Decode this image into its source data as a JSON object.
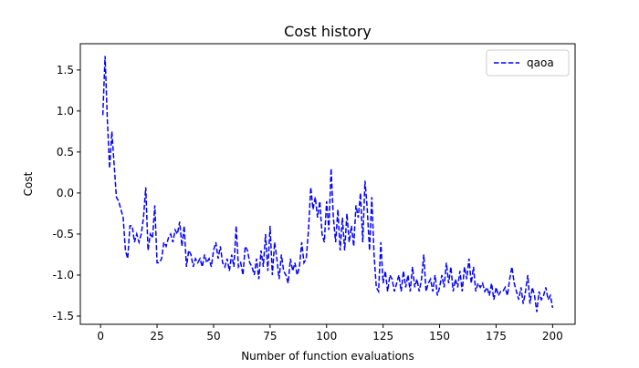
{
  "chart_data": {
    "type": "line",
    "title": "Cost history",
    "xlabel": "Number of function evaluations",
    "ylabel": "Cost",
    "x": [
      1,
      2,
      3,
      4,
      5,
      6,
      7,
      8,
      9,
      10,
      11,
      12,
      13,
      14,
      15,
      16,
      17,
      18,
      19,
      20,
      21,
      22,
      23,
      24,
      25,
      26,
      27,
      28,
      29,
      30,
      31,
      32,
      33,
      34,
      35,
      36,
      37,
      38,
      39,
      40,
      41,
      42,
      43,
      44,
      45,
      46,
      47,
      48,
      49,
      50,
      51,
      52,
      53,
      54,
      55,
      56,
      57,
      58,
      59,
      60,
      61,
      62,
      63,
      64,
      65,
      66,
      67,
      68,
      69,
      70,
      71,
      72,
      73,
      74,
      75,
      76,
      77,
      78,
      79,
      80,
      81,
      82,
      83,
      84,
      85,
      86,
      87,
      88,
      89,
      90,
      91,
      92,
      93,
      94,
      95,
      96,
      97,
      98,
      99,
      100,
      101,
      102,
      103,
      104,
      105,
      106,
      107,
      108,
      109,
      110,
      111,
      112,
      113,
      114,
      115,
      116,
      117,
      118,
      119,
      120,
      121,
      122,
      123,
      124,
      125,
      126,
      127,
      128,
      129,
      130,
      131,
      132,
      133,
      134,
      135,
      136,
      137,
      138,
      139,
      140,
      141,
      142,
      143,
      144,
      145,
      146,
      147,
      148,
      149,
      150,
      151,
      152,
      153,
      154,
      155,
      156,
      157,
      158,
      159,
      160,
      161,
      162,
      163,
      164,
      165,
      166,
      167,
      168,
      169,
      170,
      171,
      172,
      173,
      174,
      175,
      176,
      177,
      178,
      179,
      180,
      181,
      182,
      183,
      184,
      185,
      186,
      187,
      188,
      189,
      190,
      191,
      192,
      193,
      194,
      195,
      196,
      197,
      198,
      199,
      200
    ],
    "series": [
      {
        "name": "qaoa",
        "color": "#0000ff",
        "dash": "dashed",
        "values": [
          0.95,
          1.67,
          0.9,
          0.3,
          0.75,
          0.35,
          -0.05,
          -0.1,
          -0.2,
          -0.3,
          -0.7,
          -0.8,
          -0.4,
          -0.4,
          -0.6,
          -0.5,
          -0.6,
          -0.5,
          -0.3,
          0.07,
          -0.7,
          -0.5,
          -0.55,
          -0.15,
          -0.85,
          -0.85,
          -0.8,
          -0.6,
          -0.65,
          -0.55,
          -0.5,
          -0.6,
          -0.45,
          -0.5,
          -0.35,
          -0.65,
          -0.4,
          -0.9,
          -0.7,
          -0.75,
          -0.9,
          -0.8,
          -0.85,
          -0.8,
          -0.9,
          -0.75,
          -0.85,
          -0.8,
          -0.9,
          -0.7,
          -0.6,
          -0.8,
          -0.65,
          -0.85,
          -0.9,
          -0.8,
          -0.95,
          -0.75,
          -0.9,
          -0.4,
          -0.9,
          -0.85,
          -1.0,
          -0.65,
          -0.7,
          -0.85,
          -0.9,
          -1.0,
          -0.8,
          -1.05,
          -0.7,
          -0.9,
          -0.5,
          -0.95,
          -0.4,
          -1.0,
          -0.6,
          -0.8,
          -1.05,
          -0.75,
          -0.95,
          -1.0,
          -1.1,
          -0.8,
          -0.95,
          -0.85,
          -1.0,
          -0.9,
          -0.6,
          -0.85,
          -0.8,
          -0.45,
          0.07,
          -0.2,
          -0.05,
          -0.3,
          -0.1,
          -0.5,
          -0.6,
          -0.1,
          -0.45,
          0.3,
          -0.3,
          -0.6,
          -0.2,
          -0.7,
          -0.3,
          -0.7,
          -0.25,
          -0.6,
          -0.4,
          -0.65,
          -0.15,
          -0.3,
          0.0,
          -0.6,
          0.15,
          -0.2,
          -0.7,
          -0.05,
          -0.75,
          -1.15,
          -1.2,
          -0.6,
          -1.1,
          -0.95,
          -1.2,
          -1.0,
          -1.05,
          -1.2,
          -1.1,
          -1.0,
          -1.2,
          -0.95,
          -1.15,
          -1.0,
          -1.2,
          -0.9,
          -1.15,
          -1.05,
          -1.2,
          -1.05,
          -0.75,
          -1.2,
          -1.1,
          -1.05,
          -1.2,
          -1.0,
          -1.25,
          -1.15,
          -1.0,
          -1.15,
          -0.85,
          -1.1,
          -0.9,
          -1.2,
          -1.05,
          -1.15,
          -0.95,
          -1.2,
          -0.9,
          -1.05,
          -0.8,
          -1.1,
          -0.9,
          -1.2,
          -1.1,
          -1.15,
          -1.1,
          -1.2,
          -1.15,
          -1.25,
          -1.1,
          -1.3,
          -1.15,
          -1.25,
          -1.2,
          -1.2,
          -1.15,
          -1.25,
          -1.05,
          -0.9,
          -1.1,
          -1.2,
          -1.3,
          -1.15,
          -1.35,
          -1.2,
          -1.0,
          -1.35,
          -1.15,
          -1.25,
          -1.45,
          -1.2,
          -1.3,
          -1.25,
          -1.15,
          -1.3,
          -1.25,
          -1.4
        ]
      }
    ],
    "xlim": [
      -8.95,
      209.95
    ],
    "ylim": [
      -1.6,
      1.82
    ],
    "xticks": [
      0,
      25,
      50,
      75,
      100,
      125,
      150,
      175,
      200
    ],
    "yticks": [
      -1.5,
      {
        "value": -1,
        "label": "-1.0"
      },
      -0.5,
      {
        "value": 0,
        "label": "0.0"
      },
      0.5,
      {
        "value": 1,
        "label": "1.0"
      },
      1.5
    ],
    "legend": "upper right"
  }
}
